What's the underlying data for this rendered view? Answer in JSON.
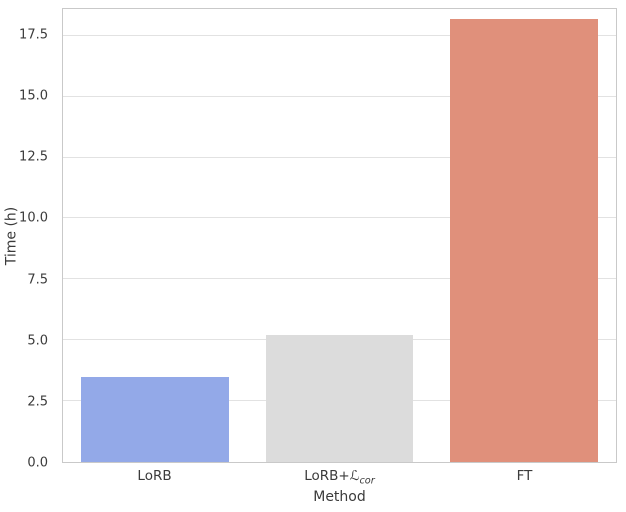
{
  "chart_data": {
    "type": "bar",
    "title": "",
    "xlabel": "Method",
    "ylabel": "Time (h)",
    "ylim": [
      0,
      18.6
    ],
    "yticks": [
      0.0,
      2.5,
      5.0,
      7.5,
      10.0,
      12.5,
      15.0,
      17.5
    ],
    "ytick_labels": [
      "0.0",
      "2.5",
      "5.0",
      "7.5",
      "10.0",
      "12.5",
      "15.0",
      "17.5"
    ],
    "categories": [
      {
        "id": "lorb",
        "text": "LoRB",
        "sub": ""
      },
      {
        "id": "lorb-lcor",
        "text": "LoRB+ℒ",
        "sub": "cor"
      },
      {
        "id": "ft",
        "text": "FT",
        "sub": ""
      }
    ],
    "values": [
      3.5,
      5.2,
      18.2
    ],
    "bar_colors": [
      "#93a9e8",
      "#dcdcdc",
      "#e0907b"
    ],
    "bar_width_fraction": 0.8,
    "grid": true,
    "legend_position": "none"
  },
  "colors": {
    "grid": "#e2e2e2",
    "spine": "#c9c9c9",
    "text": "#3b3b3b",
    "background": "#ffffff"
  }
}
